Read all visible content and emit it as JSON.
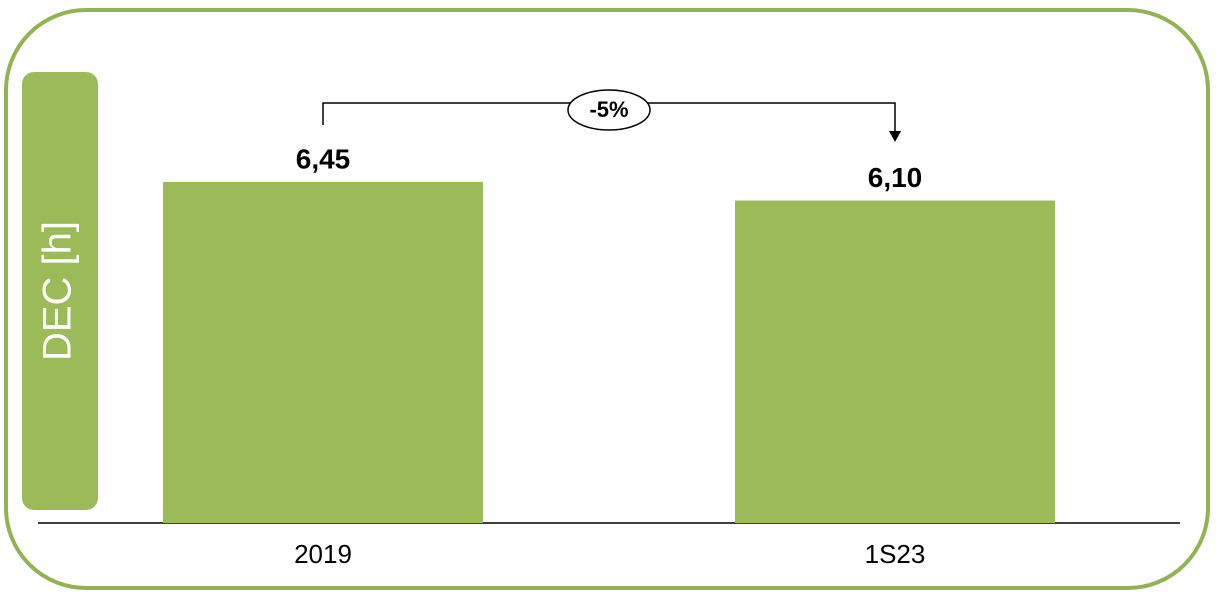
{
  "chart_data": {
    "type": "bar",
    "y_label": "DEC [h]",
    "annotation": "-5%",
    "categories": [
      "2019",
      "1S23"
    ],
    "values": [
      6.45,
      6.1
    ],
    "value_labels": [
      "6,45",
      "6,10"
    ],
    "color": "#9bbb59",
    "ylim": [
      0,
      9
    ]
  }
}
